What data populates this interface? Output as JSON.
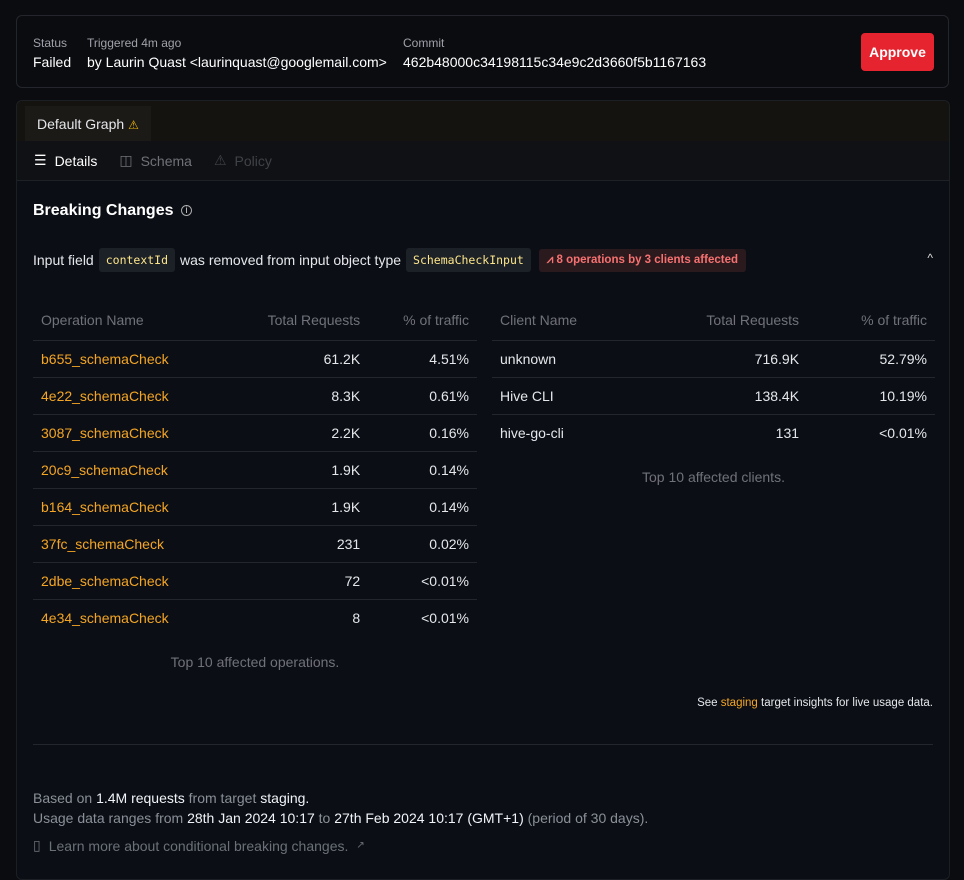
{
  "header": {
    "status_label": "Status",
    "status_value": "Failed",
    "triggered_label": "Triggered 4m ago",
    "triggered_value": "by Laurin Quast <laurinquast@googlemail.com>",
    "commit_label": "Commit",
    "commit_value": "462b48000c34198115c34e9c2d3660f5b1167163",
    "approve_label": "Approve"
  },
  "tabs": [
    {
      "label": "Default Graph",
      "warning": "⚠"
    }
  ],
  "subnav": [
    {
      "label": "Details",
      "icon": "list-icon"
    },
    {
      "label": "Schema",
      "icon": "columns-icon"
    },
    {
      "label": "Policy",
      "icon": "warning-icon"
    }
  ],
  "breaking": {
    "title": "Breaking Changes",
    "change": {
      "prefix": "Input field",
      "field": "contextId",
      "middle": "was removed from input object type",
      "type": "SchemaCheckInput",
      "badge": "8 operations by 3 clients affected"
    }
  },
  "operations": {
    "headers": [
      "Operation Name",
      "Total Requests",
      "% of traffic"
    ],
    "rows": [
      [
        "b655_schemaCheck",
        "61.2K",
        "4.51%"
      ],
      [
        "4e22_schemaCheck",
        "8.3K",
        "0.61%"
      ],
      [
        "3087_schemaCheck",
        "2.2K",
        "0.16%"
      ],
      [
        "20c9_schemaCheck",
        "1.9K",
        "0.14%"
      ],
      [
        "b164_schemaCheck",
        "1.9K",
        "0.14%"
      ],
      [
        "37fc_schemaCheck",
        "231",
        "0.02%"
      ],
      [
        "2dbe_schemaCheck",
        "72",
        "<0.01%"
      ],
      [
        "4e34_schemaCheck",
        "8",
        "<0.01%"
      ]
    ],
    "caption": "Top 10 affected operations."
  },
  "clients": {
    "headers": [
      "Client Name",
      "Total Requests",
      "% of traffic"
    ],
    "rows": [
      [
        "unknown",
        "716.9K",
        "52.79%"
      ],
      [
        "Hive CLI",
        "138.4K",
        "10.19%"
      ],
      [
        "hive-go-cli",
        "131",
        "<0.01%"
      ]
    ],
    "caption": "Top 10 affected clients."
  },
  "insights": {
    "pre": "See",
    "link": "staging",
    "post": "target insights for live usage data."
  },
  "footer": {
    "l1a": "Based on",
    "l1b": "1.4M requests",
    "l1c": "from target",
    "l1d": "staging.",
    "l2a": "Usage data ranges from",
    "l2b": "28th Jan 2024 10:17",
    "l2c": "to",
    "l2d": "27th Feb 2024 10:17 (GMT+1)",
    "l2e": "(period of 30 days).",
    "learn": "Learn more about conditional breaking changes."
  },
  "colors": {
    "accent": "#f5a524",
    "danger": "#e5242f"
  }
}
